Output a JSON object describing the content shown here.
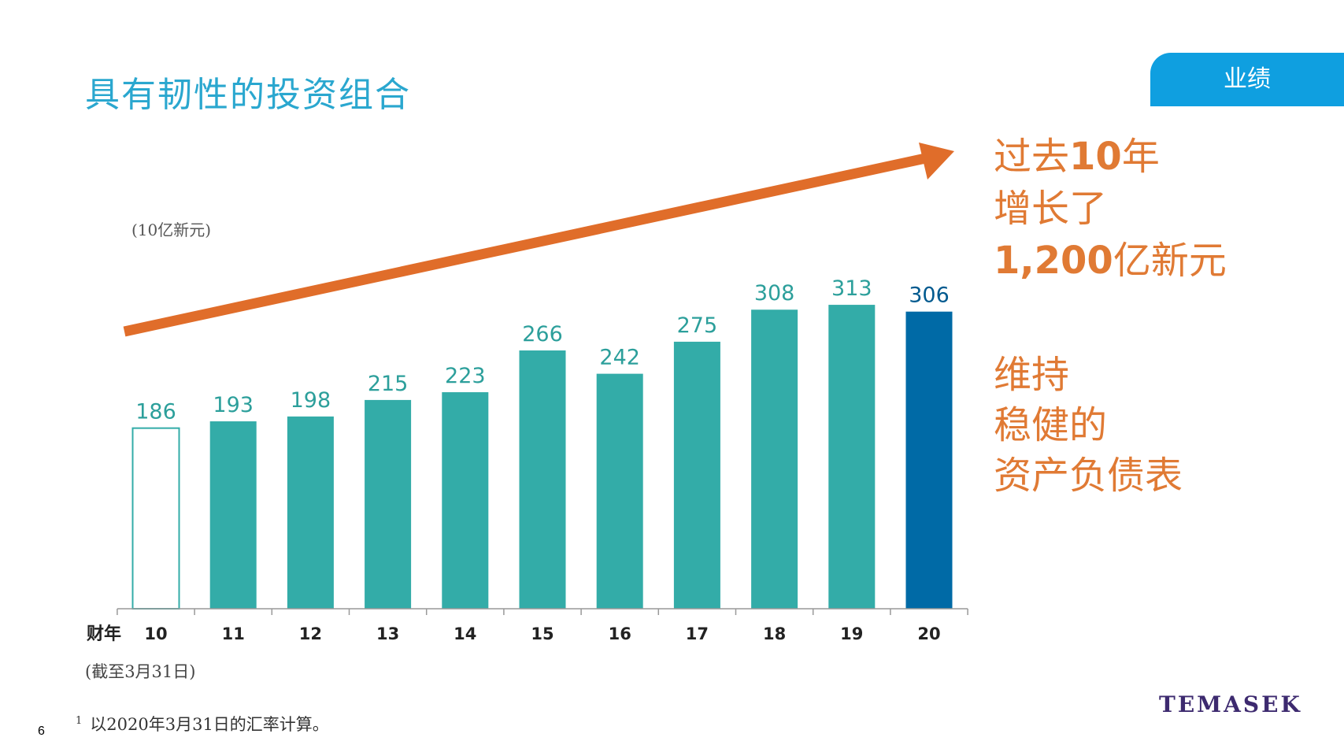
{
  "title": "具有韧性的投资组合",
  "tab_label": "业绩",
  "unit_label": "(10亿新元)",
  "axis_prefix": "财年",
  "as_of": "(截至3月31日)",
  "footnote": {
    "marker": "1",
    "text": "以2020年3月31日的汇率计算。"
  },
  "logo_text": "TEMASEK",
  "page_number": "6",
  "highlight": {
    "line1_pre": "过去",
    "line1_bold": "10",
    "line1_post": "年",
    "line2": "增长了",
    "line3_bold": "1,200",
    "line3_post": "亿新元"
  },
  "stability": {
    "line1": "维持",
    "line2": "稳健的",
    "line3": "资产负债表"
  },
  "colors": {
    "title": "#2aa7cf",
    "bar_teal": "#33aca8",
    "bar_latest": "#006aa6",
    "bar_first_outline": "#33aca8",
    "label_teal": "#2c9f9b",
    "label_latest": "#005a8f",
    "arrow": "#e06d2a",
    "accent_text": "#e07a34",
    "tab_bg": "#0f9fe0"
  },
  "chart_data": {
    "type": "bar",
    "categories": [
      "10",
      "11",
      "12",
      "13",
      "14",
      "15",
      "16",
      "17",
      "18",
      "19",
      "20"
    ],
    "values": [
      186,
      193,
      198,
      215,
      223,
      266,
      242,
      275,
      308,
      313,
      306
    ],
    "ylim": [
      0,
      330
    ],
    "grid": false,
    "bar_styles": [
      "outline",
      "filled",
      "filled",
      "filled",
      "filled",
      "filled",
      "filled",
      "filled",
      "filled",
      "filled",
      "latest"
    ]
  }
}
